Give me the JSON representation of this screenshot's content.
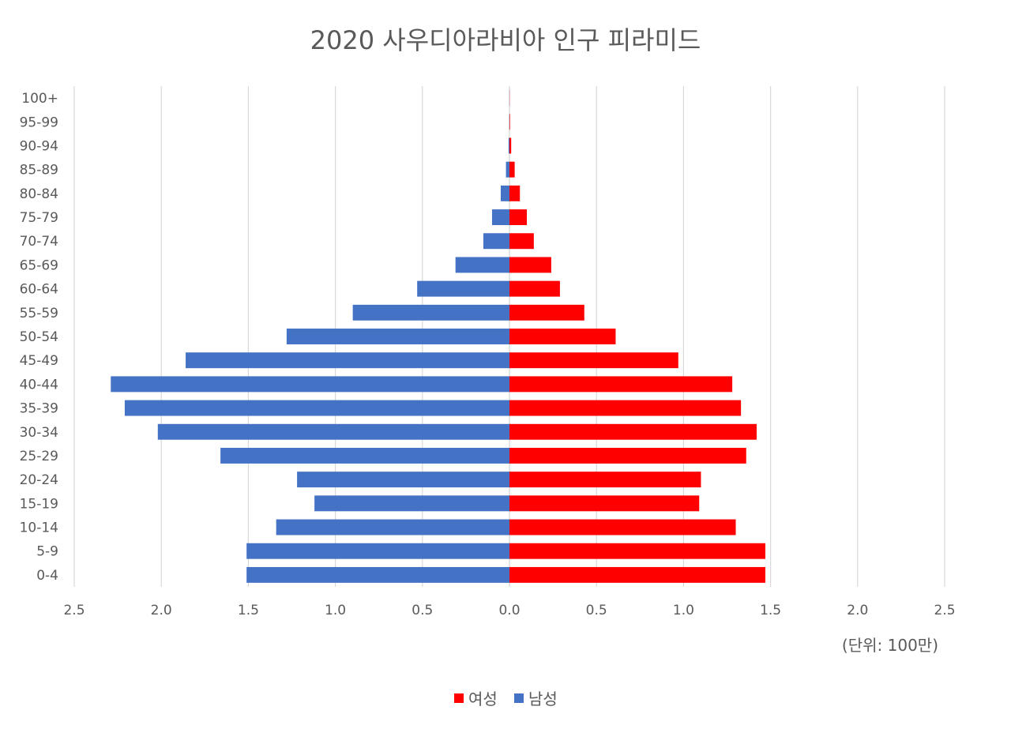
{
  "chart_data": {
    "type": "bar",
    "orientation": "horizontal-pyramid",
    "title": "2020 사우디아라비아 인구 피라미드",
    "unit_note": "(단위: 100만)",
    "categories": [
      "0-4",
      "5-9",
      "10-14",
      "15-19",
      "20-24",
      "25-29",
      "30-34",
      "35-39",
      "40-44",
      "45-49",
      "50-54",
      "55-59",
      "60-64",
      "65-69",
      "70-74",
      "75-79",
      "80-84",
      "85-89",
      "90-94",
      "95-99",
      "100+"
    ],
    "series": [
      {
        "name": "여성",
        "color": "#ff0000",
        "side": "right",
        "values": [
          1.47,
          1.47,
          1.3,
          1.09,
          1.1,
          1.36,
          1.42,
          1.33,
          1.28,
          0.97,
          0.61,
          0.43,
          0.29,
          0.24,
          0.14,
          0.1,
          0.06,
          0.03,
          0.01,
          0.003,
          0.001
        ]
      },
      {
        "name": "남성",
        "color": "#4472c4",
        "side": "left",
        "values": [
          1.51,
          1.51,
          1.34,
          1.12,
          1.22,
          1.66,
          2.02,
          2.21,
          2.29,
          1.86,
          1.28,
          0.9,
          0.53,
          0.31,
          0.15,
          0.1,
          0.05,
          0.02,
          0.005,
          0.001,
          0.0005
        ]
      }
    ],
    "x_ticks": [
      "2.5",
      "2.0",
      "1.5",
      "1.0",
      "0.5",
      "0.0",
      "0.5",
      "1.0",
      "1.5",
      "2.0",
      "2.5"
    ],
    "xlim": [
      -2.5,
      2.5
    ],
    "grid": true,
    "legend_position": "bottom"
  }
}
